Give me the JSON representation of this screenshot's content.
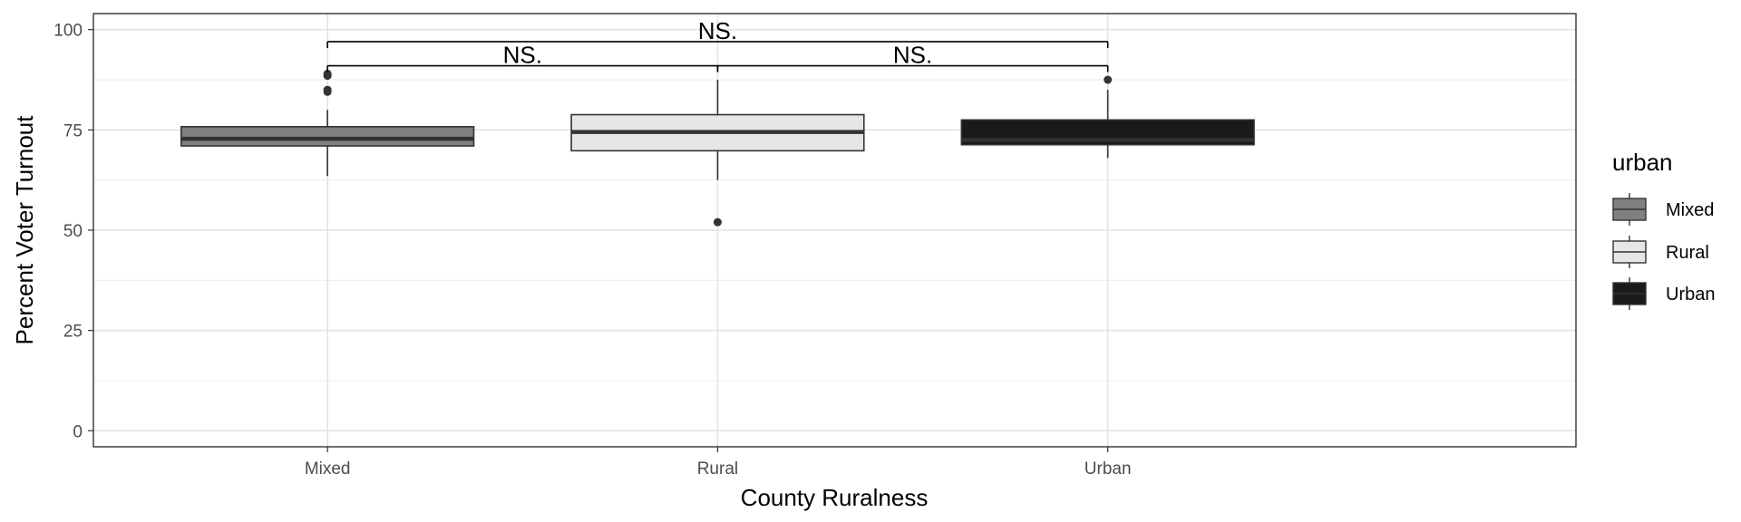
{
  "chart_data": {
    "type": "box",
    "title": "",
    "xlabel": "County Ruralness",
    "ylabel": "Percent Voter Turnout",
    "ylim": [
      -4,
      104
    ],
    "y_ticks": [
      0,
      25,
      50,
      75,
      100
    ],
    "grid": true,
    "categories": [
      "Mixed",
      "Rural",
      "Urban"
    ],
    "boxes": [
      {
        "category": "Mixed",
        "fill": "#808080",
        "q1": 71,
        "median": 72.8,
        "q3": 75.8,
        "whisker_low": 63.5,
        "whisker_high": 80,
        "outliers": [
          84.5,
          85,
          88.5,
          89
        ]
      },
      {
        "category": "Rural",
        "fill": "#e6e6e6",
        "q1": 69.8,
        "median": 74.5,
        "q3": 78.8,
        "whisker_low": 62.5,
        "whisker_high": 87.5,
        "outliers": [
          52
        ]
      },
      {
        "category": "Urban",
        "fill": "#1a1a1a",
        "q1": 71.3,
        "median": 72.5,
        "q3": 77.5,
        "whisker_low": 68,
        "whisker_high": 85,
        "outliers": [
          87.5
        ]
      }
    ],
    "comparisons": [
      {
        "from": "Mixed",
        "to": "Rural",
        "y": 91,
        "label": "NS."
      },
      {
        "from": "Rural",
        "to": "Urban",
        "y": 91,
        "label": "NS."
      },
      {
        "from": "Mixed",
        "to": "Urban",
        "y": 97,
        "label": "NS."
      }
    ],
    "legend": {
      "title": "urban",
      "position": "right",
      "entries": [
        {
          "label": "Mixed",
          "fill": "#808080"
        },
        {
          "label": "Rural",
          "fill": "#e6e6e6"
        },
        {
          "label": "Urban",
          "fill": "#1a1a1a"
        }
      ]
    }
  }
}
